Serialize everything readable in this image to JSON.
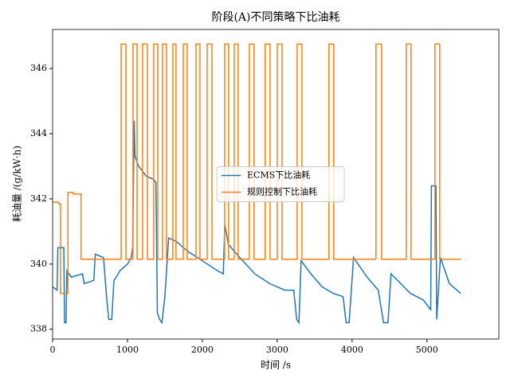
{
  "chart_data": {
    "type": "line",
    "title": "阶段(A)不同策略下比油耗",
    "x_label": "时间 /s",
    "y_label": "耗油量 /(g/kW·h)",
    "xlim": [
      0,
      5960
    ],
    "ylim": [
      337.7,
      347.2
    ],
    "xticks": [
      0,
      1000,
      2000,
      3000,
      4000,
      5000
    ],
    "yticks": [
      338,
      340,
      342,
      344,
      346
    ],
    "legend": "center",
    "series": [
      {
        "name": "ECMS下比油耗",
        "color": "#1f77b4",
        "x": [
          0,
          60,
          70,
          150,
          160,
          180,
          190,
          250,
          400,
          420,
          550,
          570,
          680,
          720,
          750,
          790,
          820,
          850,
          900,
          1000,
          1050,
          1070,
          1090,
          1100,
          1150,
          1250,
          1350,
          1380,
          1400,
          1430,
          1460,
          1500,
          1550,
          1650,
          1800,
          2000,
          2200,
          2280,
          2300,
          2350,
          2500,
          2700,
          2900,
          3100,
          3220,
          3260,
          3290,
          3320,
          3450,
          3600,
          3750,
          3880,
          3920,
          3960,
          4020,
          4200,
          4350,
          4420,
          4480,
          4520,
          4650,
          4780,
          4950,
          5050,
          5060,
          5120,
          5130,
          5180,
          5300,
          5450
        ],
        "values": [
          339.3,
          339.2,
          340.5,
          340.5,
          338.2,
          338.2,
          339.8,
          339.6,
          339.7,
          339.4,
          339.5,
          340.3,
          340.2,
          339.0,
          338.3,
          338.3,
          339.5,
          339.6,
          339.8,
          340.0,
          340.2,
          340.5,
          344.4,
          343.3,
          343.0,
          342.7,
          342.6,
          342.5,
          338.5,
          338.3,
          338.2,
          339.0,
          340.8,
          340.7,
          340.4,
          340.1,
          339.8,
          339.7,
          341.2,
          340.6,
          340.2,
          339.7,
          339.4,
          339.2,
          339.2,
          338.3,
          338.2,
          340.1,
          339.7,
          339.3,
          339.1,
          339.0,
          338.2,
          338.2,
          340.2,
          339.6,
          339.2,
          338.2,
          338.2,
          339.7,
          339.4,
          339.1,
          338.9,
          338.6,
          342.4,
          342.4,
          338.3,
          340.2,
          339.4,
          339.1
        ]
      },
      {
        "name": "规则控制下比油耗",
        "color": "#ff7f0e",
        "x": [
          0,
          80,
          80,
          105,
          105,
          205,
          205,
          275,
          275,
          380,
          380,
          915,
          915,
          979,
          979,
          1074,
          1074,
          1128,
          1128,
          1202,
          1202,
          1266,
          1266,
          1351,
          1351,
          1404,
          1404,
          1468,
          1468,
          1521,
          1521,
          1606,
          1606,
          1649,
          1649,
          1745,
          1745,
          1798,
          1798,
          1915,
          1915,
          1968,
          1968,
          2064,
          2064,
          2128,
          2128,
          2298,
          2298,
          2351,
          2351,
          2426,
          2426,
          2479,
          2479,
          2628,
          2628,
          2691,
          2691,
          2840,
          2840,
          2904,
          2904,
          3000,
          3000,
          3064,
          3064,
          3266,
          3266,
          3330,
          3330,
          3691,
          3691,
          3755,
          3755,
          4319,
          4319,
          4394,
          4394,
          4723,
          4723,
          4787,
          4787,
          5106,
          5106,
          5170,
          5170,
          5450
        ],
        "values": [
          341.9,
          341.9,
          341.85,
          341.85,
          339.1,
          339.1,
          342.2,
          342.2,
          342.15,
          342.15,
          340.15,
          340.15,
          346.75,
          346.75,
          340.15,
          340.15,
          346.75,
          346.75,
          340.15,
          340.15,
          346.75,
          346.75,
          340.15,
          340.15,
          346.75,
          346.75,
          340.15,
          340.15,
          346.75,
          346.75,
          340.15,
          340.15,
          346.75,
          346.75,
          340.15,
          340.15,
          346.75,
          346.75,
          340.15,
          340.15,
          346.75,
          346.75,
          340.15,
          340.15,
          346.75,
          346.75,
          340.15,
          340.15,
          346.75,
          346.75,
          340.15,
          340.15,
          346.75,
          346.75,
          340.15,
          340.15,
          346.75,
          346.75,
          340.15,
          340.15,
          346.75,
          346.75,
          340.15,
          340.15,
          346.75,
          346.75,
          340.15,
          340.15,
          346.75,
          346.75,
          340.15,
          340.15,
          346.75,
          346.75,
          340.15,
          340.15,
          346.75,
          346.75,
          340.15,
          340.15,
          346.75,
          346.75,
          340.15,
          340.15,
          346.75,
          346.75,
          340.15,
          340.15
        ]
      }
    ]
  }
}
